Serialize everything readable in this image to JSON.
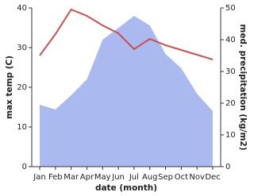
{
  "chart_data": {
    "type": "line_area",
    "x_label": "date (month)",
    "y_label": "max temp (C)",
    "y2_label": "med. precipitation (kg/m2)",
    "categories": [
      "Jan",
      "Feb",
      "Mar",
      "Apr",
      "May",
      "Jun",
      "Jul",
      "Aug",
      "Sep",
      "Oct",
      "Nov",
      "Dec"
    ],
    "series": [
      {
        "name": "max temp",
        "color": "#c85050",
        "values": [
          28,
          33.4,
          39.6,
          38,
          35.6,
          33.6,
          29.6,
          32.2,
          30.6,
          29.4,
          28.2,
          27
        ]
      },
      {
        "name": "med. precipitation",
        "color": "#aabaf0",
        "axis": "y2",
        "values": [
          19.5,
          18,
          22.5,
          27.5,
          40,
          43.7,
          47.5,
          44.5,
          35.5,
          31,
          23,
          17.5
        ]
      }
    ],
    "ylim": [
      0,
      40
    ],
    "yticks": [
      0,
      10,
      20,
      30,
      40
    ],
    "y2lim": [
      0,
      50
    ],
    "y2ticks": [
      0,
      10,
      20,
      30,
      40,
      50
    ]
  }
}
